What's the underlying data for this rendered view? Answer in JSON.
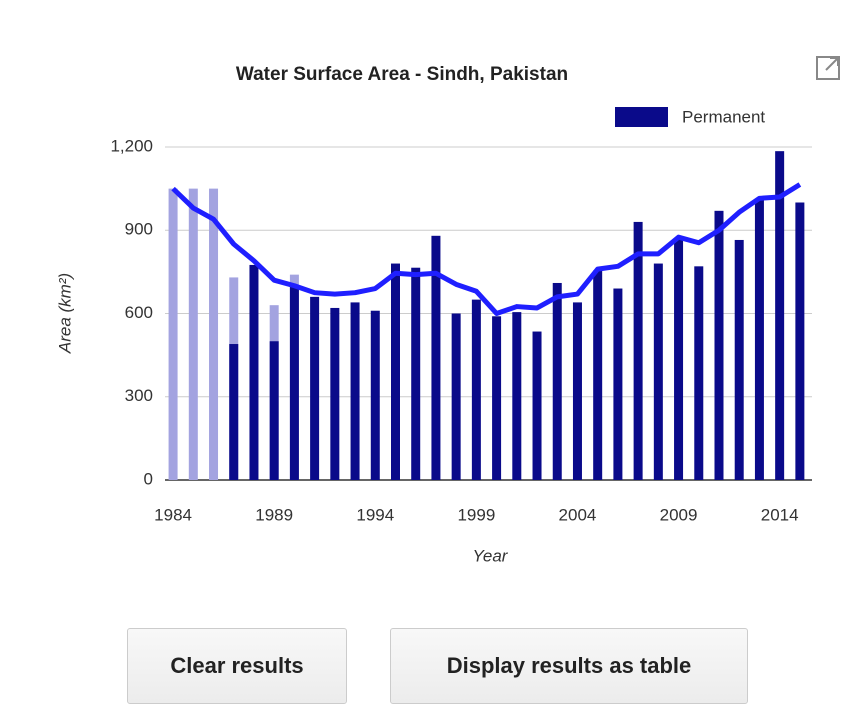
{
  "chart_data": {
    "type": "bar",
    "title": "Water Surface Area - Sindh, Pakistan",
    "y_label": "Area (km²)",
    "x_label": "Year",
    "x": [
      1984,
      1985,
      1986,
      1987,
      1988,
      1989,
      1990,
      1991,
      1992,
      1993,
      1994,
      1995,
      1996,
      1997,
      1998,
      1999,
      2000,
      2001,
      2002,
      2003,
      2004,
      2005,
      2006,
      2007,
      2008,
      2009,
      2010,
      2011,
      2012,
      2013,
      2014,
      2015
    ],
    "series": [
      {
        "color": "#a3a3e0",
        "values": [
          1050,
          1050,
          1050,
          730,
          null,
          630,
          740,
          null,
          null,
          null,
          null,
          null,
          null,
          null,
          null,
          null,
          null,
          null,
          null,
          null,
          null,
          null,
          null,
          null,
          null,
          null,
          null,
          null,
          null,
          null,
          null,
          null
        ]
      },
      {
        "name": "Permanent",
        "color": "#0a0a8a",
        "values": [
          null,
          null,
          null,
          490,
          775,
          500,
          700,
          660,
          620,
          640,
          610,
          780,
          765,
          880,
          600,
          650,
          590,
          605,
          535,
          710,
          640,
          755,
          690,
          930,
          780,
          865,
          770,
          970,
          865,
          1010,
          1185,
          1000
        ]
      },
      {
        "type": "line",
        "color": "#1f1fff",
        "values": [
          1050,
          980,
          940,
          850,
          790,
          720,
          700,
          675,
          670,
          675,
          690,
          745,
          740,
          745,
          705,
          680,
          600,
          625,
          620,
          660,
          670,
          760,
          770,
          815,
          815,
          875,
          855,
          900,
          965,
          1015,
          1020,
          1065
        ]
      }
    ],
    "xlim": [
      1983.6,
      2015.6
    ],
    "xticks": [
      1984,
      1989,
      1994,
      1999,
      2004,
      2009,
      2014
    ],
    "ylim": [
      0,
      1200
    ],
    "yticks": [
      0,
      300,
      600,
      900,
      {
        "value": 1200,
        "label": "1,200"
      }
    ],
    "grid": true
  },
  "buttons": [
    "Clear results",
    "Display results as table"
  ]
}
